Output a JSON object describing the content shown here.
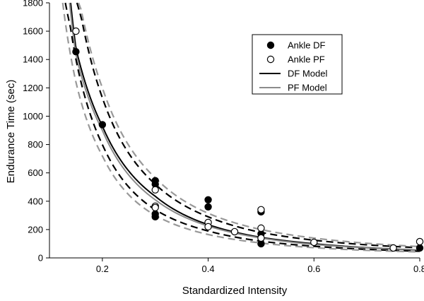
{
  "chart_data": {
    "type": "scatter",
    "xlabel": "Standardized Intensity",
    "ylabel": "Endurance Time (sec)",
    "xlim": [
      0.1,
      0.8
    ],
    "ylim": [
      0,
      1800
    ],
    "xticks": [
      0.2,
      0.4,
      0.6,
      0.8
    ],
    "yticks": [
      0,
      200,
      400,
      600,
      800,
      1000,
      1200,
      1400,
      1600,
      1800
    ],
    "grid": false,
    "legend_position": "top-right",
    "series": [
      {
        "name": "Ankle DF",
        "kind": "points",
        "marker": "filled-circle",
        "color": "#000000",
        "x": [
          0.15,
          0.2,
          0.3,
          0.3,
          0.3,
          0.3,
          0.4,
          0.4,
          0.5,
          0.5,
          0.5,
          0.8
        ],
        "y": [
          1455,
          940,
          545,
          520,
          310,
          290,
          410,
          360,
          325,
          170,
          100,
          70
        ]
      },
      {
        "name": "Ankle PF",
        "kind": "points",
        "marker": "open-circle",
        "color": "#000000",
        "x": [
          0.15,
          0.3,
          0.3,
          0.3,
          0.4,
          0.4,
          0.45,
          0.5,
          0.5,
          0.5,
          0.6,
          0.75,
          0.8
        ],
        "y": [
          1600,
          480,
          365,
          355,
          250,
          220,
          185,
          340,
          210,
          140,
          110,
          70,
          115
        ]
      },
      {
        "name": "DF Model",
        "kind": "line",
        "color": "#000000",
        "x": [
          0.14,
          0.15,
          0.2,
          0.3,
          0.4,
          0.5,
          0.6,
          0.7,
          0.8
        ],
        "y": [
          1800,
          1480,
          930,
          435,
          235,
          145,
          100,
          72,
          55
        ]
      },
      {
        "name": "PF Model",
        "kind": "line",
        "color": "#8c8c8c",
        "x": [
          0.138,
          0.15,
          0.2,
          0.3,
          0.4,
          0.5,
          0.6,
          0.7,
          0.8
        ],
        "y": [
          1800,
          1430,
          900,
          410,
          225,
          140,
          95,
          70,
          53
        ]
      },
      {
        "kind": "line",
        "style": "dashed",
        "color": "#000000",
        "x": [
          0.13,
          0.14,
          0.15,
          0.2,
          0.3,
          0.4,
          0.5,
          0.6,
          0.7,
          0.8
        ],
        "y": [
          1800,
          1620,
          1400,
          800,
          340,
          190,
          118,
          82,
          60,
          47
        ]
      },
      {
        "kind": "line",
        "style": "dashed",
        "color": "#000000",
        "x": [
          0.152,
          0.16,
          0.2,
          0.3,
          0.4,
          0.5,
          0.6,
          0.7,
          0.8
        ],
        "y": [
          1800,
          1700,
          1130,
          520,
          290,
          180,
          125,
          92,
          72
        ]
      },
      {
        "kind": "line",
        "style": "dashed",
        "color": "#999999",
        "x": [
          0.125,
          0.13,
          0.15,
          0.2,
          0.3,
          0.4,
          0.5,
          0.6,
          0.7,
          0.8
        ],
        "y": [
          1800,
          1660,
          1240,
          720,
          300,
          165,
          105,
          72,
          53,
          42
        ]
      },
      {
        "kind": "line",
        "style": "dashed",
        "color": "#999999",
        "x": [
          0.155,
          0.16,
          0.2,
          0.3,
          0.4,
          0.5,
          0.6,
          0.7,
          0.8
        ],
        "y": [
          1800,
          1750,
          1200,
          565,
          315,
          200,
          140,
          103,
          80
        ]
      }
    ]
  }
}
